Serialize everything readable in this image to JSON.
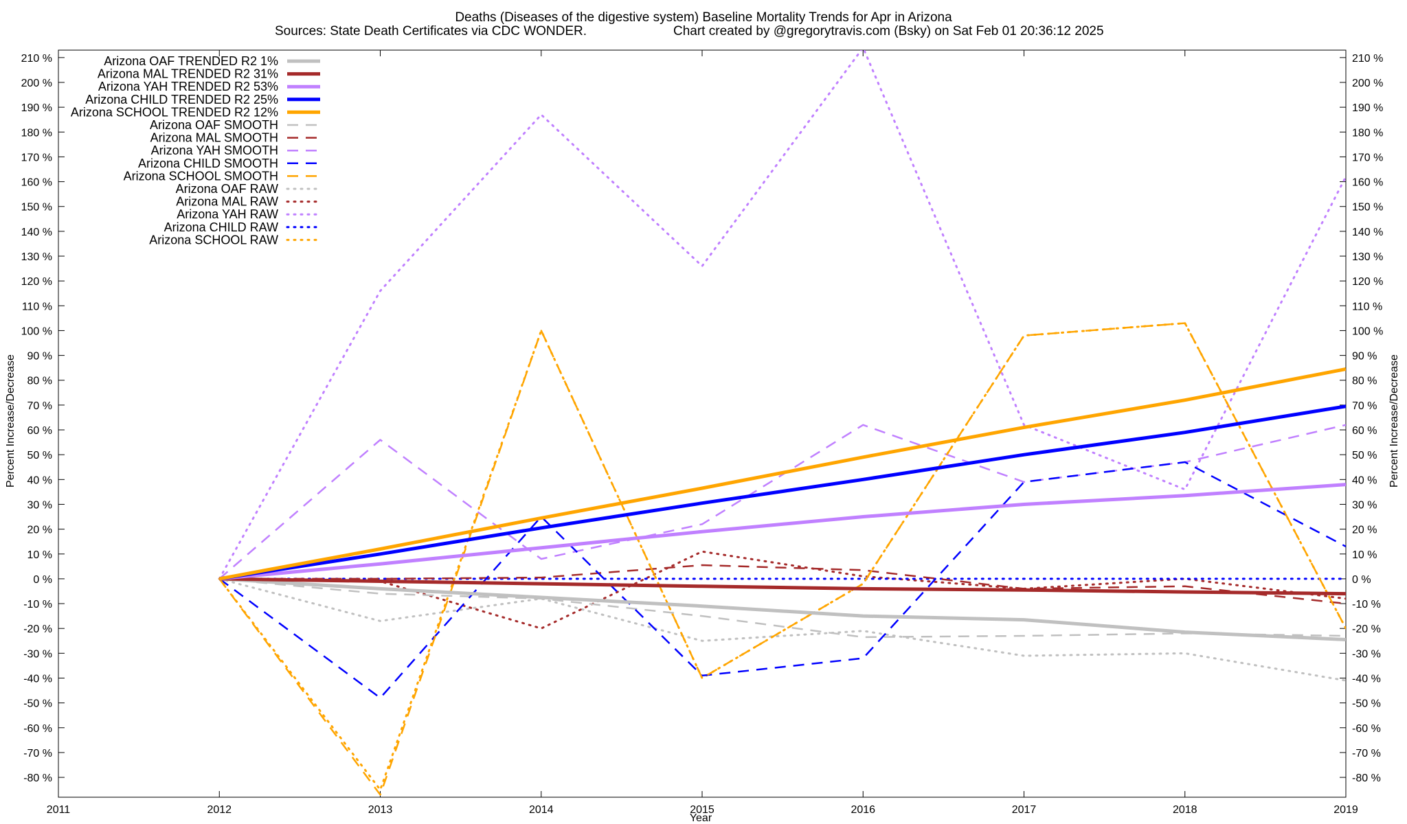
{
  "chart_data": {
    "type": "line",
    "title": "Deaths (Diseases of the digestive system)  Baseline Mortality Trends for Apr in Arizona",
    "subtitle_left": "Sources: State Death Certificates via CDC WONDER.",
    "subtitle_right": "Chart created by @gregorytravis.com (Bsky) on Sat Feb 01 20:36:12 2025",
    "xlabel": "Year",
    "ylabel": "Percent Increase/Decrease",
    "xlim": [
      2011,
      2019
    ],
    "ylim": [
      -88,
      213
    ],
    "x_ticks": [
      2011,
      2012,
      2013,
      2014,
      2015,
      2016,
      2017,
      2018,
      2019
    ],
    "y_ticks": [
      -80,
      -70,
      -60,
      -50,
      -40,
      -30,
      -20,
      -10,
      0,
      10,
      20,
      30,
      40,
      50,
      60,
      70,
      80,
      90,
      100,
      110,
      120,
      130,
      140,
      150,
      160,
      170,
      180,
      190,
      200,
      210
    ],
    "y_tick_suffix": " %",
    "grid": false,
    "legend_position": "top-left",
    "x": [
      2012,
      2013,
      2014,
      2015,
      2016,
      2017,
      2018,
      2019
    ],
    "series": [
      {
        "name": "Arizona OAF TRENDED R2",
        "r2": "1%",
        "style": "solid",
        "color": "#c0c0c0",
        "values": [
          0,
          -4,
          -7.5,
          -11,
          -15,
          -16.5,
          -21.5,
          -24.5
        ]
      },
      {
        "name": "Arizona MAL TRENDED R2",
        "r2": "31%",
        "style": "solid",
        "color": "#a52a2a",
        "values": [
          0,
          -1,
          -2,
          -3,
          -4,
          -4.5,
          -5.3,
          -6
        ]
      },
      {
        "name": "Arizona YAH TRENDED R2",
        "r2": "53%",
        "style": "solid",
        "color": "#c080ff",
        "values": [
          0,
          6,
          12.5,
          19,
          25,
          30,
          33.5,
          38
        ]
      },
      {
        "name": "Arizona CHILD TRENDED R2",
        "r2": "25%",
        "style": "solid",
        "color": "#0000ff",
        "values": [
          0,
          10,
          20.5,
          30.5,
          40,
          50,
          59,
          69.5
        ]
      },
      {
        "name": "Arizona SCHOOL TRENDED R2",
        "r2": "12%",
        "style": "solid",
        "color": "#ffa500",
        "values": [
          0,
          12,
          24.5,
          36.5,
          49,
          61,
          72,
          84.5
        ]
      },
      {
        "name": "Arizona OAF SMOOTH",
        "style": "dashed",
        "color": "#c0c0c0",
        "values": [
          0,
          -6,
          -8,
          -15,
          -23.5,
          -23,
          -22,
          -23
        ]
      },
      {
        "name": "Arizona MAL SMOOTH",
        "style": "dashed",
        "color": "#a52a2a",
        "values": [
          0,
          0,
          0.5,
          5.5,
          3.5,
          -4,
          -3,
          -10
        ]
      },
      {
        "name": "Arizona YAH SMOOTH",
        "style": "dashed",
        "color": "#c080ff",
        "values": [
          0,
          56,
          8,
          22,
          62,
          39,
          47,
          62
        ]
      },
      {
        "name": "Arizona CHILD SMOOTH",
        "style": "dashed",
        "color": "#0000ff",
        "values": [
          0,
          -48,
          25,
          -39,
          -32,
          39,
          47,
          13
        ]
      },
      {
        "name": "Arizona SCHOOL SMOOTH",
        "style": "dashed",
        "color": "#ffa500",
        "values": [
          0,
          -87,
          100,
          -40,
          -2,
          98,
          103,
          -20
        ]
      },
      {
        "name": "Arizona OAF RAW",
        "style": "dotted",
        "color": "#c0c0c0",
        "values": [
          0,
          -17,
          -8,
          -25,
          -21,
          -31,
          -30,
          -41
        ]
      },
      {
        "name": "Arizona MAL RAW",
        "style": "dotted",
        "color": "#a52a2a",
        "values": [
          0,
          -1,
          -20,
          11,
          1,
          -4,
          0,
          -8
        ]
      },
      {
        "name": "Arizona YAH RAW",
        "style": "dotted",
        "color": "#c080ff",
        "values": [
          0,
          116,
          187,
          126,
          214,
          62,
          36,
          162
        ]
      },
      {
        "name": "Arizona CHILD RAW",
        "style": "dotted",
        "color": "#0000ff",
        "values": [
          0,
          0,
          0,
          0,
          0,
          0,
          0,
          0
        ]
      },
      {
        "name": "Arizona SCHOOL RAW",
        "style": "dotted",
        "color": "#ffa500",
        "values": [
          0,
          -85,
          100,
          -40,
          -2,
          98,
          103,
          -20
        ]
      }
    ]
  }
}
